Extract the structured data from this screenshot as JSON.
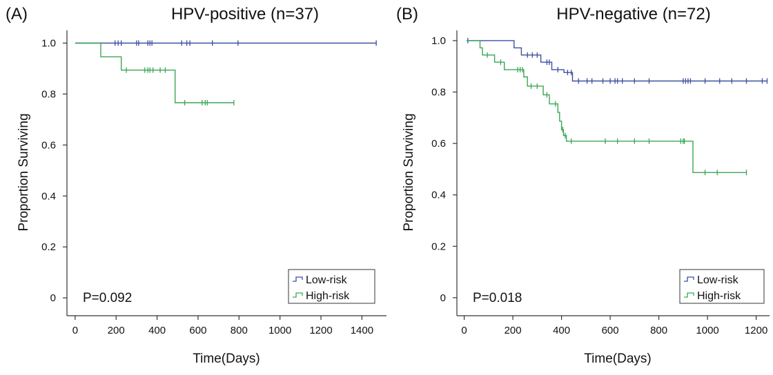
{
  "chart_data": [
    {
      "type": "line",
      "panel_label": "(A)",
      "title": "HPV-positive (n=37)",
      "xlabel": "Time(Days)",
      "ylabel": "Proportion Surviving",
      "xlim": [
        -40,
        1520
      ],
      "ylim": [
        -0.07,
        1.05
      ],
      "xticks": [
        0,
        200,
        400,
        600,
        800,
        1000,
        1200,
        1400
      ],
      "yticks": [
        "0",
        "0.2",
        "0.4",
        "0.6",
        "0.8",
        "1.0"
      ],
      "annotation": "P=0.092",
      "legend_position": "bottom-right",
      "series": [
        {
          "name": "Low-risk",
          "color": "#3b4fa0",
          "steps": [
            [
              0,
              1.0
            ],
            [
              1470,
              1.0
            ]
          ],
          "censors": [
            [
              195,
              1.0
            ],
            [
              210,
              1.0
            ],
            [
              225,
              1.0
            ],
            [
              300,
              1.0
            ],
            [
              310,
              1.0
            ],
            [
              355,
              1.0
            ],
            [
              365,
              1.0
            ],
            [
              375,
              1.0
            ],
            [
              520,
              1.0
            ],
            [
              545,
              1.0
            ],
            [
              560,
              1.0
            ],
            [
              670,
              1.0
            ],
            [
              795,
              1.0
            ],
            [
              1470,
              1.0
            ]
          ]
        },
        {
          "name": "High-risk",
          "color": "#3aa655",
          "steps": [
            [
              0,
              1.0
            ],
            [
              125,
              1.0
            ],
            [
              125,
              0.946
            ],
            [
              225,
              0.946
            ],
            [
              225,
              0.894
            ],
            [
              488,
              0.894
            ],
            [
              488,
              0.766
            ],
            [
              775,
              0.766
            ]
          ],
          "censors": [
            [
              250,
              0.894
            ],
            [
              340,
              0.894
            ],
            [
              355,
              0.894
            ],
            [
              365,
              0.894
            ],
            [
              380,
              0.894
            ],
            [
              415,
              0.894
            ],
            [
              440,
              0.894
            ],
            [
              535,
              0.766
            ],
            [
              620,
              0.766
            ],
            [
              635,
              0.766
            ],
            [
              645,
              0.766
            ],
            [
              775,
              0.766
            ]
          ]
        }
      ]
    },
    {
      "type": "line",
      "panel_label": "(B)",
      "title": "HPV-negative (n=72)",
      "xlabel": "Time(Days)",
      "ylabel": "Proportion Surviving",
      "xlim": [
        -30,
        1255
      ],
      "ylim": [
        -0.07,
        1.04
      ],
      "xticks": [
        0,
        200,
        400,
        600,
        800,
        1000,
        1200
      ],
      "yticks": [
        "0",
        "0.2",
        "0.4",
        "0.6",
        "0.8",
        "1.0"
      ],
      "annotation": "P=0.018",
      "legend_position": "bottom-right",
      "series": [
        {
          "name": "Low-risk",
          "color": "#3b4fa0",
          "steps": [
            [
              10,
              1.0
            ],
            [
              205,
              1.0
            ],
            [
              205,
              0.972
            ],
            [
              235,
              0.972
            ],
            [
              235,
              0.944
            ],
            [
              315,
              0.944
            ],
            [
              315,
              0.916
            ],
            [
              360,
              0.916
            ],
            [
              360,
              0.887
            ],
            [
              410,
              0.887
            ],
            [
              410,
              0.876
            ],
            [
              445,
              0.876
            ],
            [
              445,
              0.843
            ],
            [
              1245,
              0.843
            ]
          ],
          "censors": [
            [
              15,
              1.0
            ],
            [
              260,
              0.944
            ],
            [
              280,
              0.944
            ],
            [
              300,
              0.944
            ],
            [
              340,
              0.916
            ],
            [
              350,
              0.916
            ],
            [
              385,
              0.887
            ],
            [
              425,
              0.876
            ],
            [
              440,
              0.876
            ],
            [
              470,
              0.843
            ],
            [
              505,
              0.843
            ],
            [
              525,
              0.843
            ],
            [
              570,
              0.843
            ],
            [
              600,
              0.843
            ],
            [
              620,
              0.843
            ],
            [
              630,
              0.843
            ],
            [
              650,
              0.843
            ],
            [
              700,
              0.843
            ],
            [
              760,
              0.843
            ],
            [
              900,
              0.843
            ],
            [
              910,
              0.843
            ],
            [
              920,
              0.843
            ],
            [
              930,
              0.843
            ],
            [
              990,
              0.843
            ],
            [
              1050,
              0.843
            ],
            [
              1100,
              0.843
            ],
            [
              1160,
              0.843
            ],
            [
              1225,
              0.843
            ],
            [
              1245,
              0.843
            ]
          ]
        },
        {
          "name": "High-risk",
          "color": "#3aa655",
          "steps": [
            [
              10,
              1.0
            ],
            [
              65,
              1.0
            ],
            [
              65,
              0.972
            ],
            [
              75,
              0.972
            ],
            [
              75,
              0.944
            ],
            [
              125,
              0.944
            ],
            [
              125,
              0.916
            ],
            [
              165,
              0.916
            ],
            [
              165,
              0.887
            ],
            [
              245,
              0.887
            ],
            [
              245,
              0.859
            ],
            [
              260,
              0.859
            ],
            [
              260,
              0.823
            ],
            [
              325,
              0.823
            ],
            [
              325,
              0.789
            ],
            [
              350,
              0.789
            ],
            [
              350,
              0.754
            ],
            [
              385,
              0.754
            ],
            [
              385,
              0.721
            ],
            [
              392,
              0.721
            ],
            [
              392,
              0.687
            ],
            [
              400,
              0.687
            ],
            [
              400,
              0.654
            ],
            [
              408,
              0.654
            ],
            [
              408,
              0.631
            ],
            [
              420,
              0.631
            ],
            [
              420,
              0.609
            ],
            [
              940,
              0.609
            ],
            [
              940,
              0.487
            ],
            [
              1160,
              0.487
            ]
          ],
          "censors": [
            [
              95,
              0.944
            ],
            [
              150,
              0.916
            ],
            [
              220,
              0.887
            ],
            [
              230,
              0.887
            ],
            [
              240,
              0.887
            ],
            [
              275,
              0.823
            ],
            [
              300,
              0.823
            ],
            [
              340,
              0.789
            ],
            [
              375,
              0.754
            ],
            [
              405,
              0.654
            ],
            [
              415,
              0.631
            ],
            [
              440,
              0.609
            ],
            [
              580,
              0.609
            ],
            [
              630,
              0.609
            ],
            [
              700,
              0.609
            ],
            [
              760,
              0.609
            ],
            [
              890,
              0.609
            ],
            [
              900,
              0.609
            ],
            [
              905,
              0.609
            ],
            [
              990,
              0.487
            ],
            [
              1040,
              0.487
            ],
            [
              1160,
              0.487
            ]
          ]
        }
      ]
    }
  ]
}
